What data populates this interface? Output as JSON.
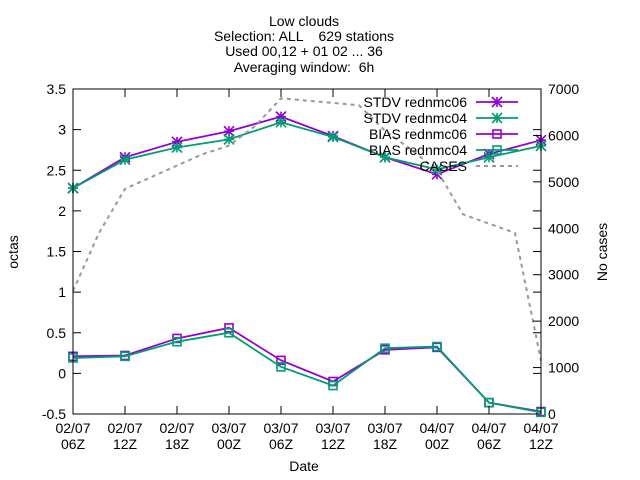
{
  "chart_data": {
    "type": "line",
    "title_lines": [
      "Low clouds",
      "Selection: ALL    629 stations",
      "Used 00,12 + 01 02 ... 36",
      "Averaging window:  6h"
    ],
    "xlabel": "Date",
    "ylabel": "octas",
    "y2label": "No cases",
    "x_tick_labels": [
      [
        "02/07",
        "06Z"
      ],
      [
        "02/07",
        "12Z"
      ],
      [
        "02/07",
        "18Z"
      ],
      [
        "03/07",
        "00Z"
      ],
      [
        "03/07",
        "06Z"
      ],
      [
        "03/07",
        "12Z"
      ],
      [
        "03/07",
        "18Z"
      ],
      [
        "04/07",
        "00Z"
      ],
      [
        "04/07",
        "06Z"
      ],
      [
        "04/07",
        "12Z"
      ]
    ],
    "xlim": [
      0,
      54
    ],
    "ylim": [
      -0.5,
      3.5
    ],
    "y_ticks": [
      "-0.5",
      "0",
      "0.5",
      "1",
      "1.5",
      "2",
      "2.5",
      "3",
      "3.5"
    ],
    "y2lim": [
      0,
      7000
    ],
    "y2_ticks": [
      "0",
      "1000",
      "2000",
      "3000",
      "4000",
      "5000",
      "6000",
      "7000"
    ],
    "legend_position": "top-right",
    "series": [
      {
        "name": "STDV rednmc06",
        "color": "#9400d3",
        "marker": "star",
        "dash": "solid",
        "axis": "y",
        "x": [
          0,
          6,
          12,
          18,
          24,
          30,
          36,
          42,
          48,
          54
        ],
        "y": [
          2.28,
          2.66,
          2.85,
          2.98,
          3.16,
          2.92,
          2.66,
          2.45,
          2.7,
          2.87
        ]
      },
      {
        "name": "STDV rednmc04",
        "color": "#009e73",
        "marker": "star",
        "dash": "solid",
        "axis": "y",
        "x": [
          0,
          6,
          12,
          18,
          24,
          30,
          36,
          42,
          48,
          54
        ],
        "y": [
          2.28,
          2.63,
          2.78,
          2.88,
          3.09,
          2.91,
          2.66,
          2.51,
          2.66,
          2.8
        ]
      },
      {
        "name": "BIAS rednmc06",
        "color": "#9400d3",
        "marker": "square",
        "dash": "solid",
        "axis": "y",
        "x": [
          0,
          6,
          12,
          18,
          24,
          30,
          36,
          42,
          48,
          54
        ],
        "y": [
          0.21,
          0.22,
          0.43,
          0.56,
          0.16,
          -0.1,
          0.29,
          0.32,
          -0.36,
          -0.47
        ]
      },
      {
        "name": "BIAS rednmc04",
        "color": "#009e73",
        "marker": "square",
        "dash": "solid",
        "axis": "y",
        "x": [
          0,
          6,
          12,
          18,
          24,
          30,
          36,
          42,
          48,
          54
        ],
        "y": [
          0.19,
          0.21,
          0.39,
          0.5,
          0.08,
          -0.15,
          0.31,
          0.33,
          -0.36,
          -0.48
        ]
      },
      {
        "name": "CASES",
        "color": "#999999",
        "marker": "none",
        "dash": "dashed",
        "axis": "y2",
        "x": [
          0,
          3,
          6,
          9,
          12,
          15,
          18,
          21,
          24,
          27,
          30,
          33,
          36,
          39,
          42,
          45,
          48,
          51,
          54
        ],
        "y": [
          2650,
          3900,
          4850,
          5100,
          5350,
          5600,
          5780,
          6200,
          6800,
          6750,
          6700,
          6650,
          6100,
          5700,
          5250,
          4300,
          4100,
          3900,
          1150
        ]
      }
    ]
  }
}
